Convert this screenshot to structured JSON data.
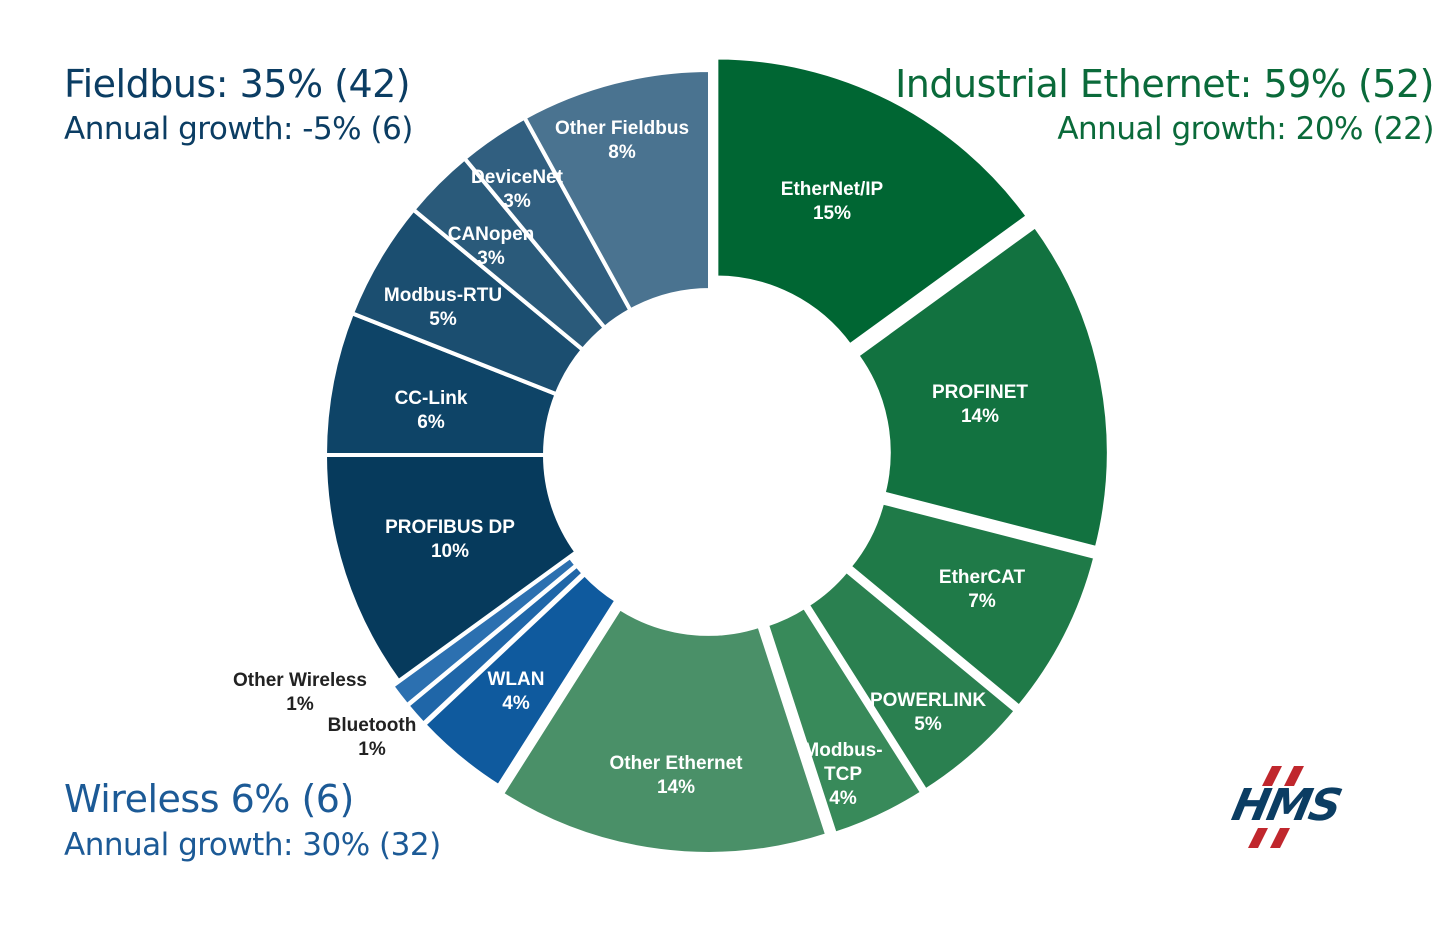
{
  "groups": {
    "fieldbus": {
      "title": "Fieldbus: 35% (42)",
      "growth": "Annual growth: -5% (6)",
      "color": "#0b3d63"
    },
    "ethernet": {
      "title": "Industrial Ethernet: 59% (52)",
      "growth": "Annual growth: 20% (22)",
      "color": "#0a6a3a"
    },
    "wireless": {
      "title": "Wireless 6% (6)",
      "growth": "Annual growth: 30% (32)",
      "color": "#1c5a96"
    }
  },
  "logo": {
    "text": "HMS",
    "colors": [
      "#0b3d63",
      "#c0272d"
    ]
  },
  "chart_data": {
    "type": "pie",
    "donut": true,
    "start": "top",
    "direction": "clockwise",
    "unit": "%",
    "slices": [
      {
        "label": "EtherNet/IP",
        "value": 15,
        "group": "ethernet",
        "color": "#006633"
      },
      {
        "label": "PROFINET",
        "value": 14,
        "group": "ethernet",
        "color": "#127240"
      },
      {
        "label": "EtherCAT",
        "value": 7,
        "group": "ethernet",
        "color": "#1f7a48"
      },
      {
        "label": "POWERLINK",
        "value": 5,
        "group": "ethernet",
        "color": "#2a8050"
      },
      {
        "label": "Modbus-TCP",
        "value": 4,
        "group": "ethernet",
        "color": "#388a5a"
      },
      {
        "label": "Other Ethernet",
        "value": 14,
        "group": "ethernet",
        "color": "#4a9068"
      },
      {
        "label": "WLAN",
        "value": 4,
        "group": "wireless",
        "color": "#0f5a9e"
      },
      {
        "label": "Bluetooth",
        "value": 1,
        "group": "wireless",
        "color": "#1f66a8"
      },
      {
        "label": "Other Wireless",
        "value": 1,
        "group": "wireless",
        "color": "#2c70b0"
      },
      {
        "label": "PROFIBUS DP",
        "value": 10,
        "group": "fieldbus",
        "color": "#063a5c"
      },
      {
        "label": "CC-Link",
        "value": 6,
        "group": "fieldbus",
        "color": "#0e4467"
      },
      {
        "label": "Modbus-RTU",
        "value": 5,
        "group": "fieldbus",
        "color": "#1b4e70"
      },
      {
        "label": "CANopen",
        "value": 3,
        "group": "fieldbus",
        "color": "#2a5a7a"
      },
      {
        "label": "DeviceNet",
        "value": 3,
        "group": "fieldbus",
        "color": "#315f80"
      },
      {
        "label": "Other Fieldbus",
        "value": 8,
        "group": "fieldbus",
        "color": "#4a7390"
      }
    ]
  }
}
